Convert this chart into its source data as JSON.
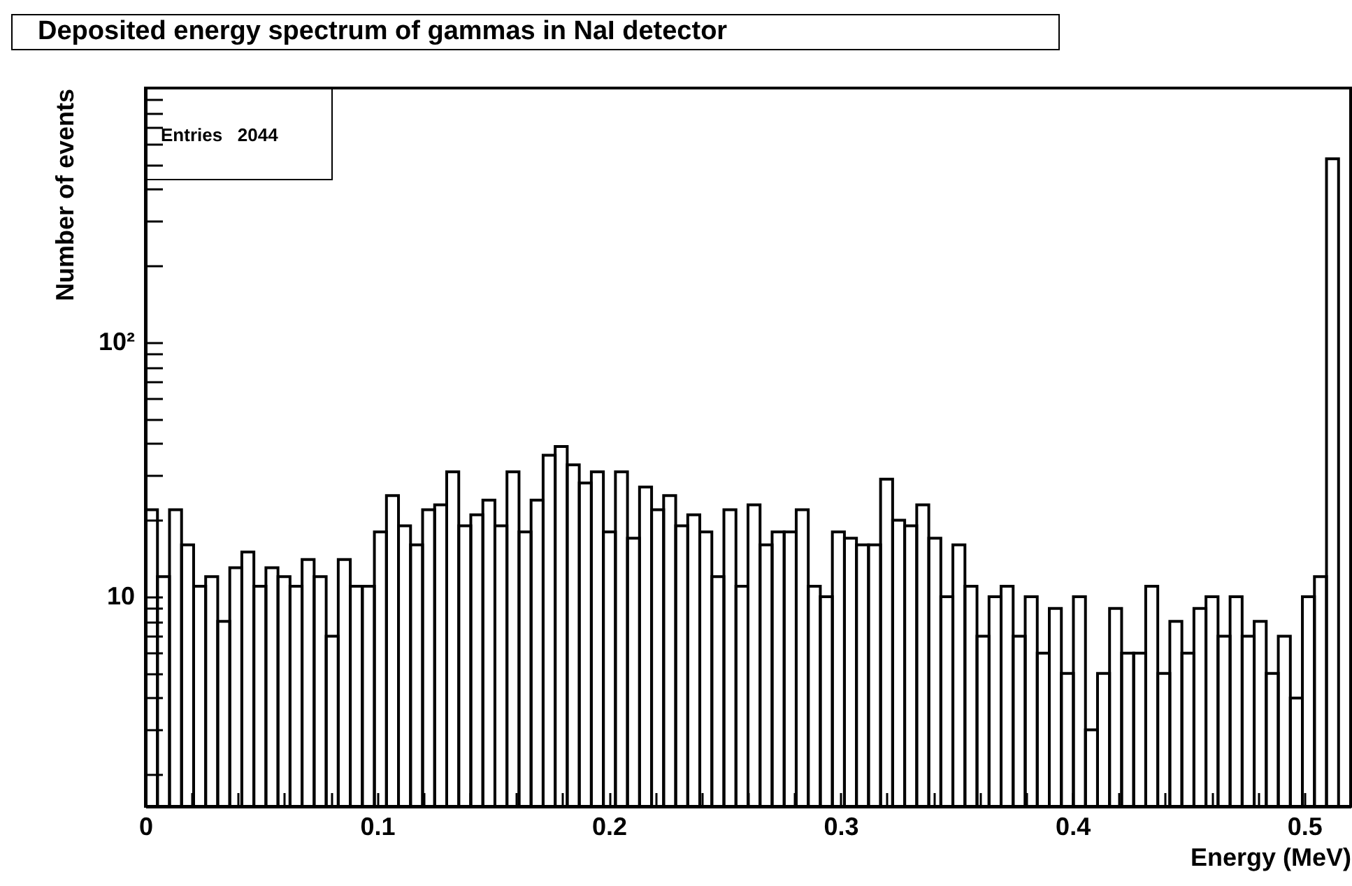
{
  "chart_data": {
    "type": "histogram",
    "title": "Deposited energy spectrum of gammas in NaI detector",
    "xlabel": "Energy (MeV)",
    "ylabel": "Number of events",
    "annotations": [
      "Entries   2044"
    ],
    "log": "y",
    "bins": [
      0,
      0.0052,
      0.0104,
      0.0156,
      0.0208,
      0.026,
      0.0312,
      0.0364,
      0.0416,
      0.0468,
      0.052,
      0.0572,
      0.0624,
      0.0676,
      0.0728,
      0.078,
      0.0832,
      0.0884,
      0.0936,
      0.0988,
      0.104,
      0.1092,
      0.1144,
      0.1196,
      0.1248,
      0.13,
      0.1352,
      0.1404,
      0.1456,
      0.1508,
      0.156,
      0.1612,
      0.1664,
      0.1716,
      0.1768,
      0.182,
      0.1872,
      0.1924,
      0.1976,
      0.2028,
      0.208,
      0.2132,
      0.2184,
      0.2236,
      0.2288,
      0.234,
      0.2392,
      0.2444,
      0.2496,
      0.2548,
      0.26,
      0.2652,
      0.2704,
      0.2756,
      0.2808,
      0.286,
      0.2912,
      0.2964,
      0.3016,
      0.3068,
      0.312,
      0.3172,
      0.3224,
      0.3276,
      0.3328,
      0.338,
      0.3432,
      0.3484,
      0.3536,
      0.3588,
      0.364,
      0.3692,
      0.3744,
      0.3796,
      0.3848,
      0.39,
      0.3952,
      0.4004,
      0.4056,
      0.4108,
      0.416,
      0.4212,
      0.4264,
      0.4316,
      0.4368,
      0.442,
      0.4472,
      0.4524,
      0.4576,
      0.4628,
      0.468,
      0.4732,
      0.4784,
      0.4836,
      0.4888,
      0.494,
      0.4992,
      0.5044,
      0.5096,
      0.5148,
      0.52
    ],
    "values": [
      22,
      12,
      22,
      16,
      11,
      12,
      8,
      13,
      15,
      11,
      13,
      12,
      11,
      14,
      12,
      7,
      14,
      11,
      11,
      18,
      25,
      19,
      16,
      22,
      23,
      31,
      19,
      21,
      24,
      19,
      31,
      18,
      24,
      36,
      39,
      33,
      28,
      31,
      18,
      31,
      17,
      27,
      22,
      25,
      19,
      21,
      18,
      12,
      22,
      11,
      23,
      16,
      18,
      18,
      22,
      11,
      10,
      18,
      17,
      16,
      16,
      29,
      20,
      19,
      23,
      17,
      10,
      16,
      11,
      7,
      10,
      11,
      7,
      10,
      6,
      9,
      5,
      10,
      3,
      5,
      9,
      6,
      6,
      11,
      5,
      8,
      6,
      9,
      10,
      7,
      10,
      7,
      8,
      5,
      7,
      4,
      10,
      12,
      527,
      null
    ],
    "xlim": [
      0,
      0.52
    ],
    "xticks": [
      0,
      {
        "value": 0.02,
        "label": null
      },
      {
        "value": 0.04,
        "label": null
      },
      {
        "value": 0.06,
        "label": null
      },
      {
        "value": 0.08,
        "label": null
      },
      0.1,
      {
        "value": 0.12,
        "label": null
      },
      {
        "value": 0.14,
        "label": null
      },
      {
        "value": 0.16,
        "label": null
      },
      {
        "value": 0.18,
        "label": null
      },
      0.2,
      {
        "value": 0.22,
        "label": null
      },
      {
        "value": 0.24,
        "label": null
      },
      {
        "value": 0.26,
        "label": null
      },
      {
        "value": 0.28,
        "label": null
      },
      0.3,
      {
        "value": 0.32,
        "label": null
      },
      {
        "value": 0.34,
        "label": null
      },
      {
        "value": 0.36,
        "label": null
      },
      {
        "value": 0.38,
        "label": null
      },
      0.4,
      {
        "value": 0.42,
        "label": null
      },
      {
        "value": 0.44,
        "label": null
      },
      {
        "value": 0.46,
        "label": null
      },
      {
        "value": 0.48,
        "label": null
      },
      0.5,
      {
        "value": 0.52,
        "label": null
      }
    ],
    "ylim": [
      1.5,
      1000
    ],
    "yticks": [
      {
        "value": 2,
        "label": null
      },
      {
        "value": 3,
        "label": null
      },
      {
        "value": 4,
        "label": null
      },
      {
        "value": 5,
        "label": null
      },
      {
        "value": 6,
        "label": null
      },
      {
        "value": 7,
        "label": null
      },
      {
        "value": 8,
        "label": null
      },
      {
        "value": 9,
        "label": null
      },
      10,
      {
        "value": 20,
        "label": null
      },
      {
        "value": 30,
        "label": null
      },
      {
        "value": 40,
        "label": null
      },
      {
        "value": 50,
        "label": null
      },
      {
        "value": 60,
        "label": null
      },
      {
        "value": 70,
        "label": null
      },
      {
        "value": 80,
        "label": null
      },
      {
        "value": 90,
        "label": null
      },
      {
        "value": 100,
        "label": "10²"
      },
      {
        "value": 200,
        "label": null
      },
      {
        "value": 300,
        "label": null
      },
      {
        "value": 400,
        "label": null
      },
      {
        "value": 500,
        "label": null
      },
      {
        "value": 600,
        "label": null
      },
      {
        "value": 700,
        "label": null
      },
      {
        "value": 800,
        "label": null
      },
      {
        "value": 900,
        "label": null
      }
    ]
  }
}
